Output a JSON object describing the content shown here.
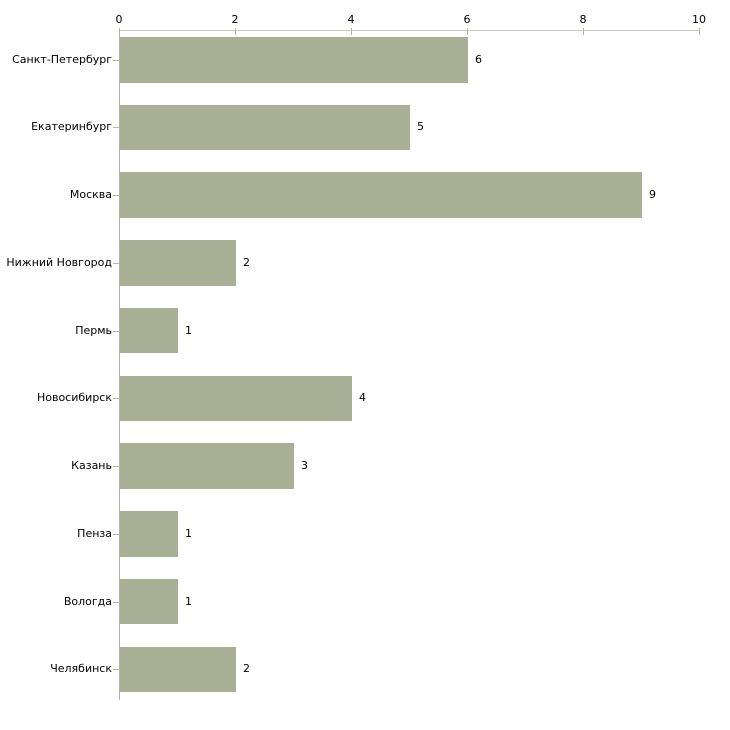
{
  "chart_data": {
    "type": "bar",
    "orientation": "horizontal",
    "title": "",
    "xlabel": "",
    "ylabel": "",
    "categories": [
      "Санкт-Петербург",
      "Екатеринбург",
      "Москва",
      "Нижний Новгород",
      "Пермь",
      "Новосибирск",
      "Казань",
      "Пенза",
      "Вологда",
      "Челябинск"
    ],
    "values": [
      6,
      5,
      9,
      2,
      1,
      4,
      3,
      1,
      1,
      2
    ],
    "value_labels": [
      "6",
      "5",
      "9",
      "2",
      "1",
      "4",
      "3",
      "1",
      "1",
      "2"
    ],
    "xlim": [
      0,
      10
    ],
    "x_ticks": [
      0,
      2,
      4,
      6,
      8,
      10
    ],
    "x_tick_labels": [
      "0",
      "2",
      "4",
      "6",
      "8",
      "10"
    ],
    "axis_position": "top",
    "grid": false,
    "legend": false,
    "colors": {
      "bar": "#a9b095",
      "x_axis_line": "#cbcbc4",
      "y_axis_line": "#b2b2b2",
      "tick": "#bdb58c",
      "text": "#000000",
      "background": "#ffffff"
    }
  }
}
